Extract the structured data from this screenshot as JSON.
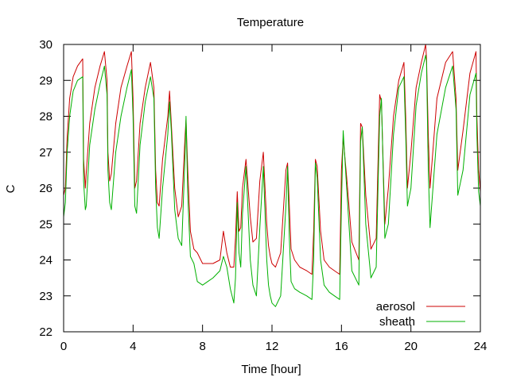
{
  "chart_data": {
    "type": "line",
    "title": "Temperature",
    "xlabel": "Time [hour]",
    "ylabel": "C",
    "xlim": [
      0,
      24
    ],
    "ylim": [
      22,
      30
    ],
    "xticks": [
      0,
      4,
      8,
      12,
      16,
      20,
      24
    ],
    "yticks": [
      22,
      23,
      24,
      25,
      26,
      27,
      28,
      29,
      30
    ],
    "grid": false,
    "legend_position": "bottom-right",
    "series": [
      {
        "name": "aerosol",
        "color": "#cc0000",
        "x": [
          0.0,
          0.1,
          0.2,
          0.35,
          0.55,
          0.8,
          1.1,
          1.15,
          1.25,
          1.3,
          1.5,
          1.8,
          2.1,
          2.35,
          2.5,
          2.55,
          2.65,
          2.75,
          3.0,
          3.3,
          3.65,
          3.9,
          4.0,
          4.1,
          4.2,
          4.4,
          4.7,
          5.0,
          5.2,
          5.3,
          5.4,
          5.5,
          5.7,
          6.0,
          6.1,
          6.2,
          6.4,
          6.6,
          6.8,
          7.0,
          7.05,
          7.15,
          7.3,
          7.5,
          7.7,
          8.0,
          8.3,
          8.6,
          9.0,
          9.2,
          9.4,
          9.6,
          9.8,
          9.9,
          10.0,
          10.1,
          10.2,
          10.3,
          10.5,
          10.75,
          10.9,
          11.1,
          11.3,
          11.5,
          11.7,
          11.8,
          11.9,
          12.0,
          12.2,
          12.5,
          12.8,
          12.9,
          13.0,
          13.1,
          13.3,
          13.6,
          14.0,
          14.3,
          14.4,
          14.5,
          14.6,
          14.8,
          15.0,
          15.3,
          15.6,
          15.9,
          16.0,
          16.1,
          16.3,
          16.6,
          17.0,
          17.1,
          17.2,
          17.4,
          17.7,
          18.0,
          18.2,
          18.3,
          18.5,
          18.7,
          19.0,
          19.3,
          19.6,
          19.7,
          19.8,
          20.0,
          20.3,
          20.6,
          20.85,
          20.9,
          21.0,
          21.1,
          21.5,
          22.0,
          22.4,
          22.6,
          22.7,
          23.0,
          23.4,
          23.75,
          23.8,
          23.9,
          24.0
        ],
        "y": [
          25.8,
          26.0,
          27.4,
          28.5,
          29.1,
          29.4,
          29.6,
          26.8,
          26.0,
          26.4,
          27.8,
          28.8,
          29.4,
          29.8,
          29.0,
          27.0,
          26.2,
          26.4,
          27.8,
          28.8,
          29.4,
          29.8,
          28.5,
          26.0,
          26.2,
          27.8,
          28.8,
          29.5,
          28.8,
          26.5,
          25.6,
          25.5,
          26.8,
          28.0,
          28.7,
          27.8,
          26.0,
          25.2,
          25.5,
          27.5,
          27.9,
          26.5,
          24.8,
          24.3,
          24.2,
          23.9,
          23.9,
          23.9,
          24.0,
          24.8,
          24.2,
          23.8,
          23.8,
          24.6,
          25.9,
          24.8,
          24.9,
          26.0,
          26.8,
          25.2,
          24.5,
          24.6,
          26.2,
          27.0,
          25.0,
          24.4,
          24.1,
          23.9,
          23.8,
          24.2,
          26.5,
          26.7,
          25.5,
          24.3,
          24.0,
          23.8,
          23.7,
          23.6,
          24.8,
          26.8,
          26.6,
          24.8,
          24.0,
          23.8,
          23.7,
          23.6,
          26.5,
          27.4,
          26.3,
          24.5,
          24.0,
          27.8,
          27.7,
          25.8,
          24.3,
          24.6,
          28.6,
          28.4,
          25.0,
          26.0,
          28.0,
          29.0,
          29.5,
          28.0,
          26.0,
          27.0,
          28.8,
          29.5,
          30.0,
          29.6,
          27.5,
          26.0,
          28.5,
          29.5,
          29.8,
          28.5,
          26.5,
          27.6,
          29.2,
          29.8,
          28.0,
          26.5,
          25.9
        ]
      },
      {
        "name": "sheath",
        "color": "#00b000",
        "x": [
          0.0,
          0.1,
          0.2,
          0.35,
          0.55,
          0.8,
          1.1,
          1.15,
          1.25,
          1.3,
          1.5,
          1.8,
          2.1,
          2.35,
          2.5,
          2.55,
          2.65,
          2.75,
          3.0,
          3.3,
          3.65,
          3.9,
          4.0,
          4.1,
          4.2,
          4.4,
          4.7,
          5.0,
          5.2,
          5.3,
          5.4,
          5.5,
          5.7,
          6.0,
          6.1,
          6.2,
          6.4,
          6.6,
          6.8,
          7.0,
          7.05,
          7.15,
          7.3,
          7.5,
          7.7,
          8.0,
          8.3,
          8.6,
          9.0,
          9.2,
          9.4,
          9.6,
          9.8,
          9.9,
          10.0,
          10.1,
          10.2,
          10.3,
          10.5,
          10.75,
          10.9,
          11.1,
          11.3,
          11.5,
          11.7,
          11.8,
          11.9,
          12.0,
          12.2,
          12.5,
          12.8,
          12.9,
          13.0,
          13.1,
          13.3,
          13.6,
          14.0,
          14.3,
          14.4,
          14.5,
          14.6,
          14.8,
          15.0,
          15.3,
          15.6,
          15.9,
          16.0,
          16.1,
          16.3,
          16.6,
          17.0,
          17.1,
          17.2,
          17.4,
          17.7,
          18.0,
          18.2,
          18.3,
          18.5,
          18.7,
          19.0,
          19.3,
          19.6,
          19.7,
          19.8,
          20.0,
          20.3,
          20.6,
          20.85,
          20.9,
          21.0,
          21.1,
          21.5,
          22.0,
          22.4,
          22.6,
          22.7,
          23.0,
          23.4,
          23.75,
          23.8,
          23.9,
          24.0
        ],
        "y": [
          25.2,
          25.6,
          27.0,
          28.0,
          28.7,
          29.0,
          29.1,
          26.2,
          25.4,
          25.5,
          27.2,
          28.2,
          28.9,
          29.4,
          28.6,
          26.5,
          25.6,
          25.4,
          27.0,
          28.0,
          28.8,
          29.3,
          28.0,
          25.5,
          25.3,
          27.2,
          28.4,
          29.1,
          28.5,
          26.0,
          24.9,
          24.6,
          26.0,
          27.5,
          28.4,
          27.6,
          25.4,
          24.6,
          24.4,
          27.0,
          28.0,
          25.8,
          24.1,
          23.9,
          23.4,
          23.3,
          23.4,
          23.5,
          23.7,
          24.1,
          23.8,
          23.2,
          22.8,
          23.5,
          25.6,
          24.2,
          23.8,
          25.3,
          26.6,
          24.0,
          23.3,
          23.0,
          24.9,
          26.6,
          24.0,
          23.3,
          23.0,
          22.8,
          22.7,
          23.0,
          25.5,
          26.6,
          24.6,
          23.4,
          23.2,
          23.1,
          23.0,
          22.9,
          24.0,
          26.7,
          26.3,
          24.0,
          23.3,
          23.1,
          23.0,
          22.9,
          25.5,
          27.6,
          26.0,
          23.7,
          23.3,
          27.3,
          27.7,
          25.0,
          23.5,
          23.8,
          28.0,
          28.5,
          24.6,
          25.0,
          27.5,
          28.8,
          29.1,
          27.5,
          25.5,
          26.0,
          28.3,
          29.2,
          29.7,
          29.5,
          26.5,
          24.9,
          27.5,
          28.8,
          29.4,
          28.2,
          25.8,
          26.5,
          28.6,
          29.2,
          27.5,
          25.9,
          25.5
        ]
      }
    ]
  }
}
